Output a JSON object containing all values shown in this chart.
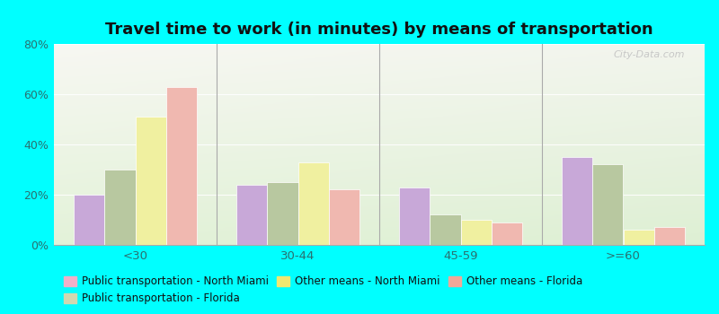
{
  "title": "Travel time to work (in minutes) by means of transportation",
  "categories": [
    "<30",
    "30-44",
    "45-59",
    ">=60"
  ],
  "series": {
    "Public transportation - North Miami": [
      20,
      24,
      23,
      35
    ],
    "Public transportation - Florida": [
      30,
      25,
      12,
      32
    ],
    "Other means - North Miami": [
      51,
      33,
      10,
      6
    ],
    "Other means - Florida": [
      63,
      22,
      9,
      7
    ]
  },
  "colors": {
    "Public transportation - North Miami": "#c8a8d8",
    "Public transportation - Florida": "#b8c8a0",
    "Other means - North Miami": "#f0f0a0",
    "Other means - Florida": "#f0b8b0"
  },
  "legend_colors": {
    "Public transportation - North Miami": "#f0b0c8",
    "Public transportation - Florida": "#d0d8b0",
    "Other means - North Miami": "#f0e870",
    "Other means - Florida": "#f0a898"
  },
  "ylim": [
    0,
    80
  ],
  "yticks": [
    0,
    20,
    40,
    60,
    80
  ],
  "ytick_labels": [
    "0%",
    "20%",
    "40%",
    "60%",
    "80%"
  ],
  "background_color": "#00ffff",
  "title_fontsize": 13,
  "legend_fontsize": 8.5,
  "watermark": "City-Data.com"
}
